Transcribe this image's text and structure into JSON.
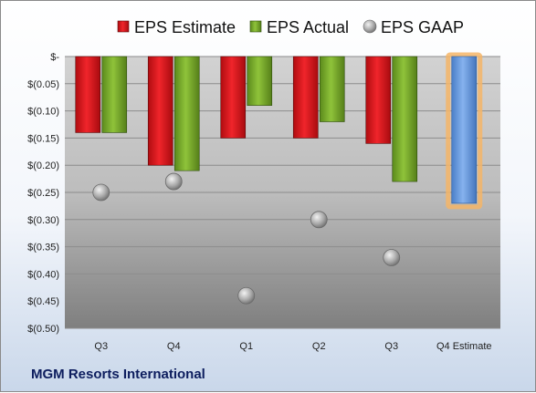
{
  "company": "MGM Resorts International",
  "chart_data": {
    "type": "bar",
    "categories": [
      "Q3",
      "Q4",
      "Q1",
      "Q2",
      "Q3",
      "Q4 Estimate"
    ],
    "series": [
      {
        "name": "EPS Estimate",
        "type": "bar",
        "color": "#e0141b",
        "values": [
          -0.14,
          -0.2,
          -0.15,
          -0.15,
          -0.16,
          null
        ]
      },
      {
        "name": "EPS Actual",
        "type": "bar",
        "color": "#7cae2b",
        "values": [
          -0.14,
          -0.21,
          -0.09,
          -0.12,
          -0.23,
          null
        ]
      },
      {
        "name": "EPS GAAP",
        "type": "scatter",
        "color": "#b3b3b3",
        "values": [
          -0.25,
          -0.23,
          -0.44,
          -0.3,
          -0.37,
          null
        ]
      },
      {
        "name": "Q4 Estimate",
        "type": "bar",
        "color": "#6a9ee0",
        "highlight": "#f5b567",
        "values": [
          null,
          null,
          null,
          null,
          null,
          -0.27
        ]
      }
    ],
    "y_ticks": [
      "$-",
      "$(0.05)",
      "$(0.10)",
      "$(0.15)",
      "$(0.20)",
      "$(0.25)",
      "$(0.30)",
      "$(0.35)",
      "$(0.40)",
      "$(0.45)",
      "$(0.50)"
    ],
    "ylim": [
      -0.5,
      0
    ],
    "grid": true,
    "legend": {
      "position": "top",
      "entries": [
        "EPS Estimate",
        "EPS Actual",
        "EPS GAAP"
      ]
    }
  }
}
